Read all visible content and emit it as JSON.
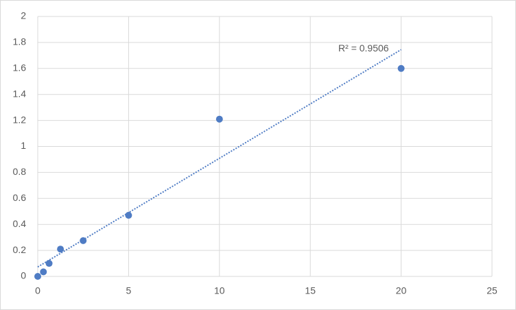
{
  "chart_data": {
    "type": "scatter",
    "x": [
      0,
      0.3125,
      0.625,
      1.25,
      2.5,
      5,
      10,
      20
    ],
    "series": [
      {
        "color": "#4f7cc4",
        "values": [
          0,
          0.035,
          0.1,
          0.21,
          0.275,
          0.47,
          1.21,
          1.6
        ]
      }
    ],
    "xlim": [
      0,
      25
    ],
    "xticks": [
      0,
      5,
      10,
      15,
      20,
      25
    ],
    "ylim": [
      0,
      2
    ],
    "yticks": [
      0,
      0.2,
      0.4,
      0.6,
      0.8,
      1,
      1.2,
      1.4,
      1.6,
      1.8,
      2
    ],
    "grid": true,
    "trendline": "linear",
    "annotation": "R² = 0.9506"
  }
}
